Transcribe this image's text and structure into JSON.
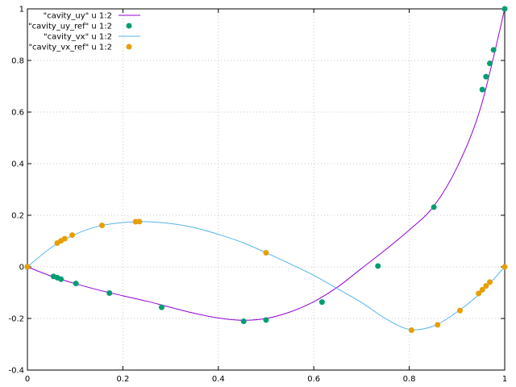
{
  "chart_data": {
    "type": "scatter",
    "title": "",
    "xlabel": "",
    "ylabel": "",
    "xlim": [
      0,
      1
    ],
    "ylim": [
      -0.4,
      1
    ],
    "grid": true,
    "legend_position": "top-left",
    "x_ticks": [
      "0",
      "0.2",
      "0.4",
      "0.6",
      "0.8",
      "1"
    ],
    "y_ticks": [
      "-0.4",
      "-0.2",
      "0",
      "0.2",
      "0.4",
      "0.6",
      "0.8",
      "1"
    ],
    "series": [
      {
        "name": "\"cavity_uy\" u 1:2",
        "style": "line",
        "color": "#9400d3",
        "x": [
          0,
          0.05,
          0.1,
          0.15,
          0.2,
          0.25,
          0.3,
          0.35,
          0.4,
          0.45,
          0.5,
          0.55,
          0.6,
          0.65,
          0.7,
          0.75,
          0.8,
          0.85,
          0.9,
          0.95,
          1.0
        ],
        "y": [
          0,
          -0.036,
          -0.065,
          -0.09,
          -0.112,
          -0.133,
          -0.157,
          -0.18,
          -0.198,
          -0.207,
          -0.2,
          -0.175,
          -0.135,
          -0.078,
          -0.006,
          0.066,
          0.143,
          0.232,
          0.385,
          0.62,
          1.0
        ]
      },
      {
        "name": "\"cavity_uy_ref\" u 1:2",
        "style": "points",
        "color": "#009e73",
        "x": [
          0,
          0.0547,
          0.0625,
          0.0703,
          0.1016,
          0.1719,
          0.2813,
          0.4531,
          0.5,
          0.6172,
          0.7344,
          0.8516,
          0.9531,
          0.9609,
          0.9688,
          0.9766,
          1.0
        ],
        "y": [
          0,
          -0.0372,
          -0.0419,
          -0.0478,
          -0.0643,
          -0.1015,
          -0.1566,
          -0.2109,
          -0.2058,
          -0.1364,
          0.0033,
          0.2315,
          0.6872,
          0.7372,
          0.7887,
          0.8412,
          1.0
        ]
      },
      {
        "name": "\"cavity_vx\" u 1:2",
        "style": "line",
        "color": "#56b4e9",
        "x": [
          0,
          0.05,
          0.1,
          0.15,
          0.2,
          0.25,
          0.3,
          0.35,
          0.4,
          0.45,
          0.5,
          0.55,
          0.6,
          0.65,
          0.7,
          0.75,
          0.8,
          0.85,
          0.9,
          0.95,
          1.0
        ],
        "y": [
          0,
          0.075,
          0.126,
          0.158,
          0.172,
          0.175,
          0.168,
          0.152,
          0.126,
          0.095,
          0.055,
          0.012,
          -0.033,
          -0.085,
          -0.138,
          -0.2,
          -0.242,
          -0.23,
          -0.175,
          -0.1,
          0
        ]
      },
      {
        "name": "\"cavity_vx_ref\" u 1:2",
        "style": "points",
        "color": "#e69f00",
        "x": [
          0,
          0.0625,
          0.0703,
          0.0781,
          0.0938,
          0.1563,
          0.2266,
          0.2344,
          0.5,
          0.8047,
          0.8594,
          0.9063,
          0.9453,
          0.9531,
          0.9609,
          0.9688,
          1.0
        ],
        "y": [
          0,
          0.0923,
          0.1009,
          0.1089,
          0.1232,
          0.1608,
          0.1751,
          0.1753,
          0.0545,
          -0.2453,
          -0.2245,
          -0.1691,
          -0.1031,
          -0.0886,
          -0.0739,
          -0.0591,
          0
        ]
      }
    ]
  }
}
